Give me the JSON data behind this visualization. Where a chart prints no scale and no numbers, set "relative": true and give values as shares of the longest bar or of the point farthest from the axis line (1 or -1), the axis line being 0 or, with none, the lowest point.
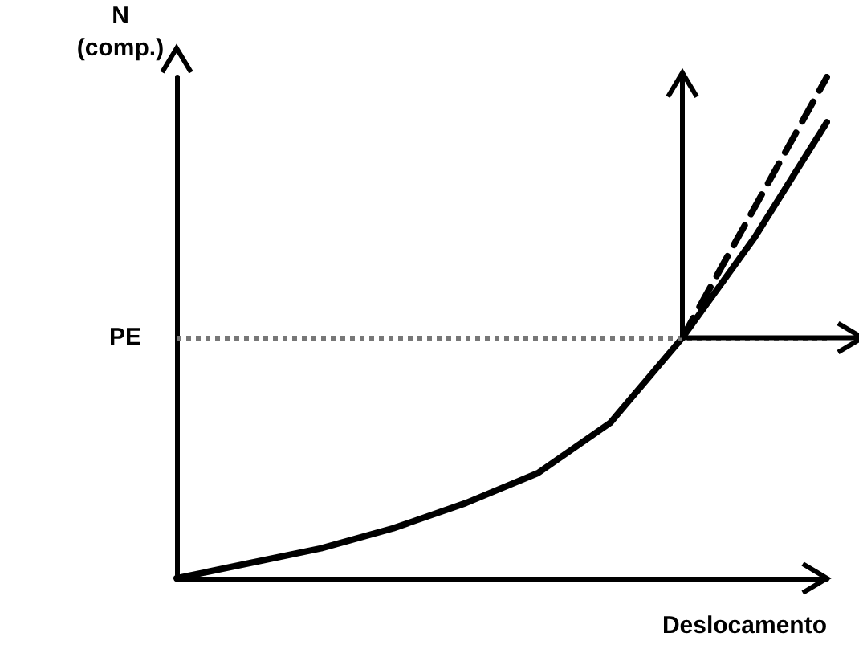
{
  "chart_data": {
    "type": "line",
    "relative": true,
    "ylabel": "N\n(comp.)",
    "xlabel": "Deslocamento",
    "categories": [
      null,
      null,
      null,
      null,
      null,
      null,
      null,
      null,
      null,
      null
    ],
    "marker": "none",
    "grid": false,
    "series": [
      {
        "color": "#000000",
        "line_style": "solid",
        "values": [
          0,
          0.03,
          0.06,
          0.1,
          0.15,
          0.21,
          0.31,
          0.48,
          0.68,
          0.91
        ]
      },
      {
        "color": "#000000",
        "line_style": "dashed",
        "values": [
          null,
          null,
          null,
          null,
          null,
          null,
          null,
          0.48,
          0.74,
          1
        ]
      }
    ],
    "ref_lines": [
      {
        "axis": "y",
        "value": 0.48,
        "label": "PE",
        "color": "#777777",
        "line_style": "dotted"
      }
    ]
  }
}
